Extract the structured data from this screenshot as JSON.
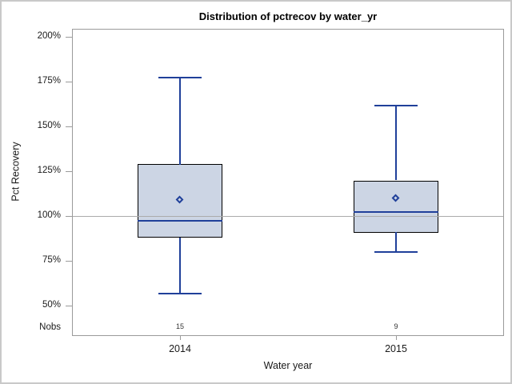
{
  "chart_data": {
    "type": "boxplot",
    "title": "Distribution of pctrecov by water_yr",
    "xlabel": "Water year",
    "ylabel": "Pct Recovery",
    "nobs_label": "Nobs",
    "y_axis": {
      "ticks": [
        200,
        175,
        150,
        125,
        100,
        75,
        50
      ],
      "unit": "%",
      "min": 36,
      "max": 204,
      "grid": false
    },
    "reference_line": 100,
    "categories": [
      "2014",
      "2015"
    ],
    "series": [
      {
        "category": "2014",
        "nobs": 15,
        "whisker_low": 57,
        "q1": 88,
        "median": 98,
        "q3": 129,
        "whisker_high": 178,
        "mean": 109
      },
      {
        "category": "2015",
        "nobs": 9,
        "whisker_low": 80,
        "q1": 91,
        "median": 103,
        "q3": 120,
        "whisker_high": 162,
        "mean": 110
      }
    ],
    "legend": "none",
    "colors": {
      "box_fill": "#ccd5e4",
      "box_border": "#000000",
      "line": "#20409a",
      "reference_line": "#ababab",
      "axis": "#9b9b9b",
      "text": "#1a1a1a",
      "nobs_text": "#333333"
    }
  }
}
